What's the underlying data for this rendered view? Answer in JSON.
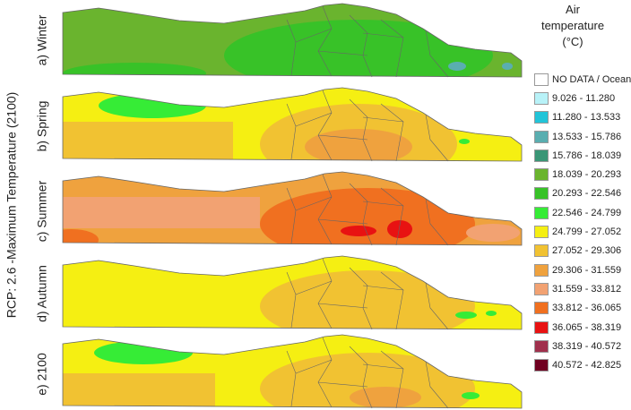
{
  "title": "RCP: 2.6 -Maximum Temperature (2100)",
  "panels": [
    {
      "label": "a) Winter"
    },
    {
      "label": "b) Spring"
    },
    {
      "label": "c) Summer"
    },
    {
      "label": "d) Autumn"
    },
    {
      "label": "e) 2100"
    }
  ],
  "legend": {
    "title": "Air temperature (°C)",
    "items": [
      {
        "label": "NO DATA / Ocean",
        "color": "#ffffff"
      },
      {
        "label": "9.026  -  11.280",
        "color": "#b8f2f8"
      },
      {
        "label": "11.280  -  13.533",
        "color": "#22c4d8"
      },
      {
        "label": "13.533  -  15.786",
        "color": "#5aaeb0"
      },
      {
        "label": "15.786  -  18.039",
        "color": "#3a9676"
      },
      {
        "label": "18.039  -  20.293",
        "color": "#6ab42e"
      },
      {
        "label": "20.293  -  22.546",
        "color": "#38c228"
      },
      {
        "label": "22.546  -  24.799",
        "color": "#36ec36"
      },
      {
        "label": "24.799  -  27.052",
        "color": "#f5ef12"
      },
      {
        "label": "27.052  -  29.306",
        "color": "#f1c232"
      },
      {
        "label": "29.306  -  31.559",
        "color": "#efa23e"
      },
      {
        "label": "31.559  -  33.812",
        "color": "#f2a272"
      },
      {
        "label": "33.812  -  36.065",
        "color": "#f07020"
      },
      {
        "label": "36.065  -  38.319",
        "color": "#e81212"
      },
      {
        "label": "38.319  -  40.572",
        "color": "#a0304c"
      },
      {
        "label": "40.572  -  42.825",
        "color": "#700020"
      }
    ]
  }
}
